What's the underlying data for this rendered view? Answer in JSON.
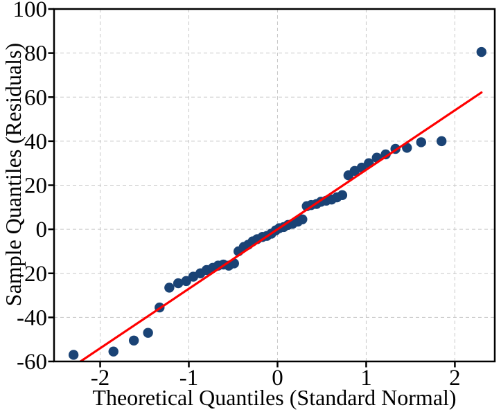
{
  "chart_data": {
    "type": "scatter",
    "title": "",
    "xlabel": "Theoretical Quantiles (Standard Normal)",
    "ylabel": "Sample Quantiles (Residuals)",
    "xlim": [
      -2.52,
      2.45
    ],
    "ylim": [
      -60,
      100
    ],
    "grid": true,
    "legend": "none",
    "x_ticks": [
      -2,
      -1,
      0,
      1,
      2
    ],
    "x_tick_labels": [
      "-2",
      "-1",
      "0",
      "1",
      "2"
    ],
    "y_ticks": [
      -60,
      -40,
      -20,
      0,
      20,
      40,
      60,
      80,
      100
    ],
    "y_tick_labels": [
      "-60",
      "-40",
      "-20",
      "0",
      "20",
      "40",
      "60",
      "80",
      "100"
    ],
    "series": [
      {
        "name": "sample-quantile-points",
        "type": "scatter",
        "marker": "circle",
        "color": "#1a4375",
        "points": [
          [
            -2.3,
            -57.0
          ],
          [
            -1.85,
            -55.5
          ],
          [
            -1.62,
            -50.5
          ],
          [
            -1.46,
            -47.0
          ],
          [
            -1.33,
            -35.5
          ],
          [
            -1.22,
            -26.5
          ],
          [
            -1.12,
            -24.5
          ],
          [
            -1.03,
            -23.5
          ],
          [
            -0.95,
            -21.5
          ],
          [
            -0.87,
            -20.0
          ],
          [
            -0.8,
            -18.5
          ],
          [
            -0.73,
            -17.5
          ],
          [
            -0.67,
            -16.5
          ],
          [
            -0.61,
            -16.0
          ],
          [
            -0.55,
            -16.5
          ],
          [
            -0.49,
            -15.5
          ],
          [
            -0.44,
            -10.0
          ],
          [
            -0.38,
            -8.0
          ],
          [
            -0.33,
            -7.0
          ],
          [
            -0.28,
            -5.5
          ],
          [
            -0.23,
            -4.5
          ],
          [
            -0.17,
            -3.5
          ],
          [
            -0.12,
            -3.0
          ],
          [
            -0.07,
            -2.0
          ],
          [
            -0.02,
            -0.5
          ],
          [
            0.02,
            0.5
          ],
          [
            0.07,
            1.0
          ],
          [
            0.12,
            2.0
          ],
          [
            0.17,
            2.5
          ],
          [
            0.23,
            3.5
          ],
          [
            0.28,
            4.5
          ],
          [
            0.33,
            10.5
          ],
          [
            0.38,
            11.0
          ],
          [
            0.44,
            11.5
          ],
          [
            0.49,
            12.5
          ],
          [
            0.55,
            13.0
          ],
          [
            0.61,
            13.5
          ],
          [
            0.67,
            14.5
          ],
          [
            0.73,
            15.5
          ],
          [
            0.8,
            24.5
          ],
          [
            0.87,
            26.5
          ],
          [
            0.95,
            28.0
          ],
          [
            1.03,
            30.0
          ],
          [
            1.12,
            32.5
          ],
          [
            1.22,
            34.0
          ],
          [
            1.33,
            36.5
          ],
          [
            1.46,
            37.0
          ],
          [
            1.62,
            39.5
          ],
          [
            1.85,
            40.0
          ],
          [
            2.3,
            80.5
          ]
        ]
      },
      {
        "name": "normality-reference-line",
        "type": "line",
        "color": "#ff0000",
        "points": [
          [
            -2.3,
            -62.1
          ],
          [
            2.3,
            62.1
          ]
        ]
      }
    ],
    "colors": {
      "background": "#ffffff",
      "grid": "#c8c8c8",
      "axis": "#000000",
      "point": "#1a4375",
      "reference_line": "#ff0000"
    }
  }
}
